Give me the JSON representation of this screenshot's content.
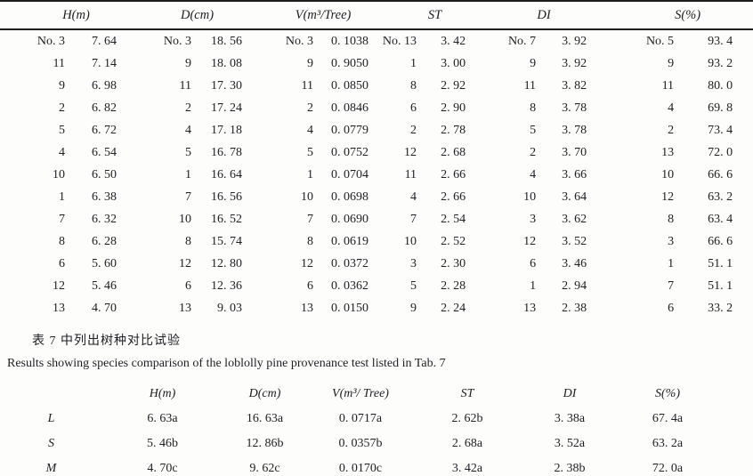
{
  "table1": {
    "groups": [
      {
        "label": "H(m)"
      },
      {
        "label": "D(cm)"
      },
      {
        "label": "V(m³/Tree)"
      },
      {
        "label": "ST"
      },
      {
        "label": "DI"
      },
      {
        "label": "S(%)"
      }
    ],
    "rows": [
      [
        "No. 3",
        "7. 64",
        "No. 3",
        "18. 56",
        "No. 3",
        "0. 1038",
        "No. 13",
        "3. 42",
        "No. 7",
        "3. 92",
        "No. 5",
        "93. 4"
      ],
      [
        "11",
        "7. 14",
        "9",
        "18. 08",
        "9",
        "0. 9050",
        "1",
        "3. 00",
        "9",
        "3. 92",
        "9",
        "93. 2"
      ],
      [
        "9",
        "6. 98",
        "11",
        "17. 30",
        "11",
        "0. 0850",
        "8",
        "2. 92",
        "11",
        "3. 82",
        "11",
        "80. 0"
      ],
      [
        "2",
        "6. 82",
        "2",
        "17. 24",
        "2",
        "0. 0846",
        "6",
        "2. 90",
        "8",
        "3. 78",
        "4",
        "69. 8"
      ],
      [
        "5",
        "6. 72",
        "4",
        "17. 18",
        "4",
        "0. 0779",
        "2",
        "2. 78",
        "5",
        "3. 78",
        "2",
        "73. 4"
      ],
      [
        "4",
        "6. 54",
        "5",
        "16. 78",
        "5",
        "0. 0752",
        "12",
        "2. 68",
        "2",
        "3. 70",
        "13",
        "72. 0"
      ],
      [
        "10",
        "6. 50",
        "1",
        "16. 64",
        "1",
        "0. 0704",
        "11",
        "2. 66",
        "4",
        "3. 66",
        "10",
        "66. 6"
      ],
      [
        "1",
        "6. 38",
        "7",
        "16. 56",
        "10",
        "0. 0698",
        "4",
        "2. 66",
        "10",
        "3. 64",
        "12",
        "63. 2"
      ],
      [
        "7",
        "6. 32",
        "10",
        "16. 52",
        "7",
        "0. 0690",
        "7",
        "2. 54",
        "3",
        "3. 62",
        "8",
        "63. 4"
      ],
      [
        "8",
        "6. 28",
        "8",
        "15. 74",
        "8",
        "0. 0619",
        "10",
        "2. 52",
        "12",
        "3. 52",
        "3",
        "66. 6"
      ],
      [
        "6",
        "5. 60",
        "12",
        "12. 80",
        "12",
        "0. 0372",
        "3",
        "2. 30",
        "6",
        "3. 46",
        "1",
        "51. 1"
      ],
      [
        "12",
        "5. 46",
        "6",
        "12. 36",
        "6",
        "0. 0362",
        "5",
        "2. 28",
        "1",
        "2. 94",
        "7",
        "51. 1"
      ],
      [
        "13",
        "4. 70",
        "13",
        "9. 03",
        "13",
        "0. 0150",
        "9",
        "2. 24",
        "13",
        "2. 38",
        "6",
        "33. 2"
      ]
    ]
  },
  "caption": {
    "zh": "表 7 中列出树种对比试验",
    "en": "Results showing species comparison of the loblolly pine provenance test listed in Tab. 7"
  },
  "table2": {
    "headers": [
      "H(m)",
      "D(cm)",
      "V(m³/ Tree)",
      "ST",
      "DI",
      "S(%)"
    ],
    "rows": [
      {
        "label": "L",
        "values": [
          "6. 63a",
          "16. 63a",
          "0. 0717a",
          "2. 62b",
          "3. 38a",
          "67. 4a"
        ]
      },
      {
        "label": "S",
        "values": [
          "5. 46b",
          "12. 86b",
          "0. 0357b",
          "2. 68a",
          "3. 52a",
          "63. 2a"
        ]
      },
      {
        "label": "M",
        "values": [
          "4. 70c",
          "9. 62c",
          "0. 0170c",
          "3. 42a",
          "2. 38b",
          "72. 0a"
        ]
      }
    ]
  }
}
